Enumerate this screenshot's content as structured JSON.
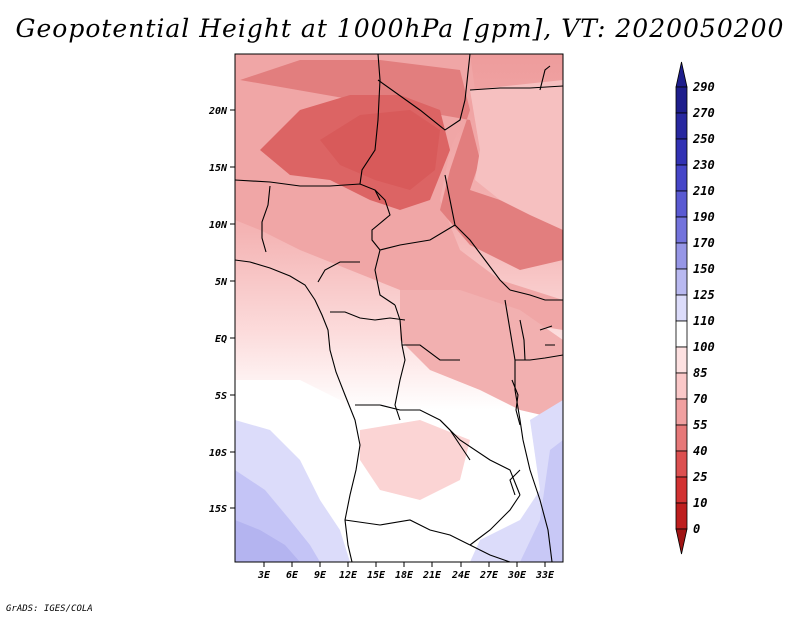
{
  "title": "Geopotential Height at 1000hPa [gpm], VT: 2020050200",
  "credit": "GrADS: IGES/COLA",
  "map": {
    "lat_labels": [
      "20N",
      "15N",
      "10N",
      "5N",
      "EQ",
      "5S",
      "10S",
      "15S"
    ],
    "lon_labels": [
      "3E",
      "6E",
      "9E",
      "12E",
      "15E",
      "18E",
      "21E",
      "24E",
      "27E",
      "30E",
      "33E"
    ]
  },
  "colorbar": {
    "labels": [
      "290",
      "270",
      "250",
      "230",
      "210",
      "190",
      "170",
      "150",
      "125",
      "110",
      "100",
      "85",
      "70",
      "55",
      "40",
      "25",
      "10",
      "0"
    ],
    "colors": [
      "#1e1e8c",
      "#2828a0",
      "#3232b4",
      "#4646c8",
      "#5a5ad2",
      "#7373dc",
      "#9696e6",
      "#b9b9f0",
      "#dcdcfa",
      "#ffffff",
      "#fde1e1",
      "#fac8c8",
      "#f0a0a0",
      "#e67878",
      "#dc5050",
      "#d23232",
      "#be1e1e",
      "#a01414"
    ]
  }
}
